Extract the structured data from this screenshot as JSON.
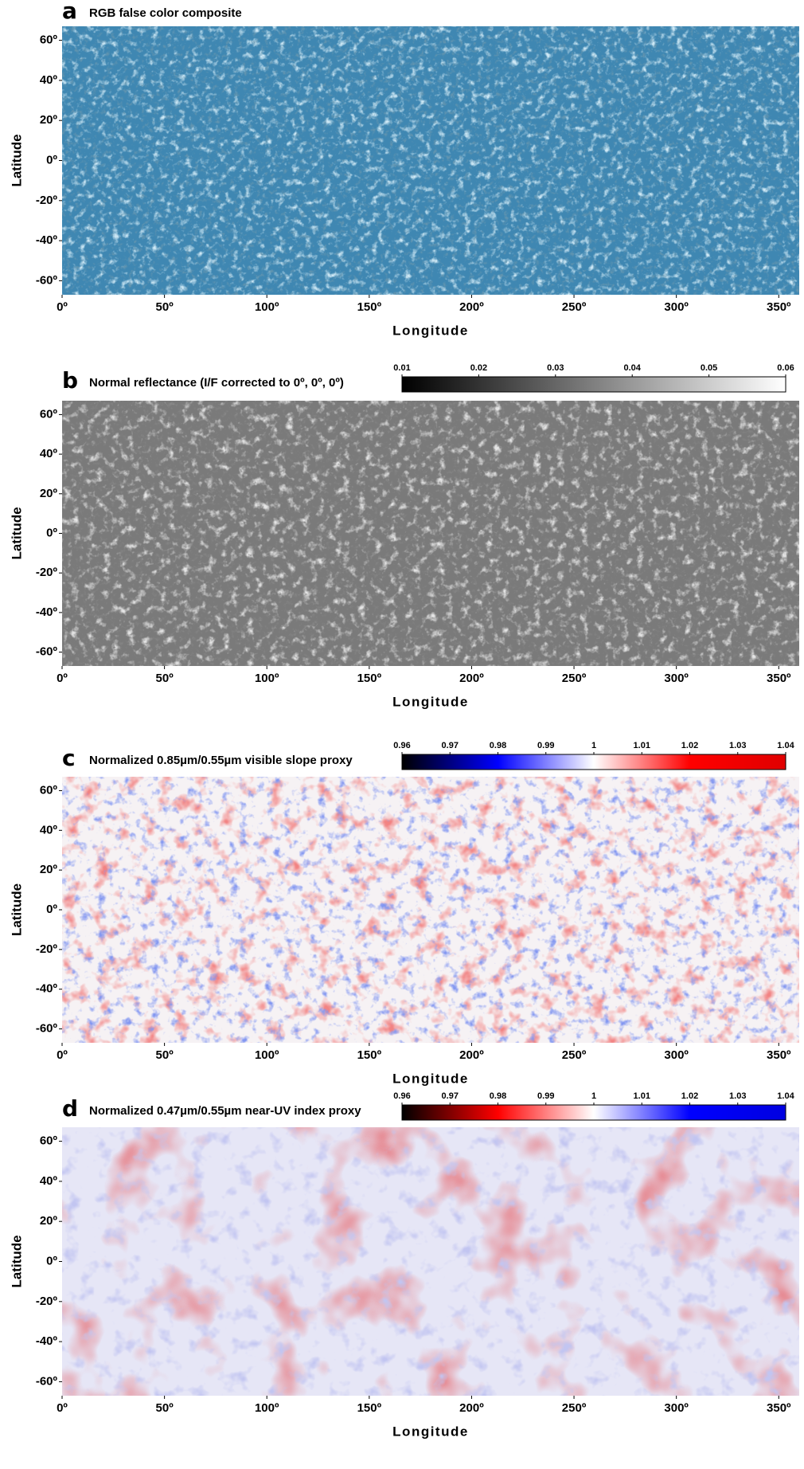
{
  "chart_data": [
    {
      "type": "map",
      "panel": "a",
      "title": "RGB false color composite",
      "xlabel": "Longitude",
      "ylabel": "Latitude",
      "xlim": [
        0,
        360
      ],
      "ylim": [
        -67,
        67
      ],
      "xticks": [
        {
          "value": 0,
          "label": "0º"
        },
        {
          "value": 50,
          "label": "50º"
        },
        {
          "value": 100,
          "label": "100º"
        },
        {
          "value": 150,
          "label": "150º"
        },
        {
          "value": 200,
          "label": "200º"
        },
        {
          "value": 250,
          "label": "250º"
        },
        {
          "value": 300,
          "label": "300º"
        },
        {
          "value": 350,
          "label": "350º"
        }
      ],
      "yticks": [
        {
          "value": 60,
          "label": "60º"
        },
        {
          "value": 40,
          "label": "40º"
        },
        {
          "value": 20,
          "label": "20º"
        },
        {
          "value": 0,
          "label": "0º"
        },
        {
          "value": -20,
          "label": "-20º"
        },
        {
          "value": -40,
          "label": "-40º"
        },
        {
          "value": -60,
          "label": "-60º"
        }
      ],
      "colors": [
        "#3f87b2",
        "#9fd0ea",
        "#1f4c6e"
      ]
    },
    {
      "type": "map",
      "panel": "b",
      "title": "Normal reflectance (I/F corrected to 0º, 0º, 0º)",
      "xlabel": "Longitude",
      "ylabel": "Latitude",
      "xlim": [
        0,
        360
      ],
      "ylim": [
        -67,
        67
      ],
      "xticks": [
        {
          "value": 0,
          "label": "0º"
        },
        {
          "value": 50,
          "label": "50º"
        },
        {
          "value": 100,
          "label": "100º"
        },
        {
          "value": 150,
          "label": "150º"
        },
        {
          "value": 200,
          "label": "200º"
        },
        {
          "value": 250,
          "label": "250º"
        },
        {
          "value": 300,
          "label": "300º"
        },
        {
          "value": 350,
          "label": "350º"
        }
      ],
      "yticks": [
        {
          "value": 60,
          "label": "60º"
        },
        {
          "value": 40,
          "label": "40º"
        },
        {
          "value": 20,
          "label": "20º"
        },
        {
          "value": 0,
          "label": "0º"
        },
        {
          "value": -20,
          "label": "-20º"
        },
        {
          "value": -40,
          "label": "-40º"
        },
        {
          "value": -60,
          "label": "-60º"
        }
      ],
      "colors": [
        "#7a7a7a",
        "#c8c8c8",
        "#3a3a3a"
      ],
      "colorbar_lim": [
        0.01,
        0.06
      ],
      "colorbar_ticks": [
        0.01,
        0.02,
        0.03,
        0.04,
        0.05,
        0.06
      ],
      "colormap": [
        "#000000",
        "#ffffff"
      ]
    },
    {
      "type": "map",
      "panel": "c",
      "title": "Normalized 0.85µm/0.55µm visible slope proxy",
      "xlabel": "Longitude",
      "ylabel": "Latitude",
      "xlim": [
        0,
        360
      ],
      "ylim": [
        -67,
        67
      ],
      "xticks": [
        {
          "value": 0,
          "label": "0º"
        },
        {
          "value": 50,
          "label": "50º"
        },
        {
          "value": 100,
          "label": "100º"
        },
        {
          "value": 150,
          "label": "150º"
        },
        {
          "value": 200,
          "label": "200º"
        },
        {
          "value": 250,
          "label": "250º"
        },
        {
          "value": 300,
          "label": "300º"
        },
        {
          "value": 350,
          "label": "350º"
        }
      ],
      "yticks": [
        {
          "value": 60,
          "label": "60º"
        },
        {
          "value": 40,
          "label": "40º"
        },
        {
          "value": 20,
          "label": "20º"
        },
        {
          "value": 0,
          "label": "0º"
        },
        {
          "value": -20,
          "label": "-20º"
        },
        {
          "value": -40,
          "label": "-40º"
        },
        {
          "value": -60,
          "label": "-60º"
        }
      ],
      "colors": [
        "#f6f2f4",
        "#e23a3a",
        "#3a4fe0"
      ],
      "colorbar_lim": [
        0.96,
        1.04
      ],
      "colorbar_ticks": [
        0.96,
        0.97,
        0.98,
        0.99,
        1,
        1.01,
        1.02,
        1.03,
        1.04
      ],
      "colormap": [
        "#000000",
        "#0000ff",
        "#ffffff",
        "#ff0000",
        "#e00000"
      ]
    },
    {
      "type": "map",
      "panel": "d",
      "title": "Normalized 0.47µm/0.55µm near-UV index proxy",
      "xlabel": "Longitude",
      "ylabel": "Latitude",
      "xlim": [
        0,
        360
      ],
      "ylim": [
        -67,
        67
      ],
      "xticks": [
        {
          "value": 0,
          "label": "0º"
        },
        {
          "value": 50,
          "label": "50º"
        },
        {
          "value": 100,
          "label": "100º"
        },
        {
          "value": 150,
          "label": "150º"
        },
        {
          "value": 200,
          "label": "200º"
        },
        {
          "value": 250,
          "label": "250º"
        },
        {
          "value": 300,
          "label": "300º"
        },
        {
          "value": 350,
          "label": "350º"
        }
      ],
      "yticks": [
        {
          "value": 60,
          "label": "60º"
        },
        {
          "value": 40,
          "label": "40º"
        },
        {
          "value": 20,
          "label": "20º"
        },
        {
          "value": 0,
          "label": "0º"
        },
        {
          "value": -20,
          "label": "-20º"
        },
        {
          "value": -40,
          "label": "-40º"
        },
        {
          "value": -60,
          "label": "-60º"
        }
      ],
      "colors": [
        "#e6e6f6",
        "#c9414a",
        "#8a8fe0"
      ],
      "colorbar_lim": [
        0.96,
        1.04
      ],
      "colorbar_ticks": [
        0.96,
        0.97,
        0.98,
        0.99,
        1,
        1.01,
        1.02,
        1.03,
        1.04
      ],
      "colormap": [
        "#000000",
        "#ff0000",
        "#ffffff",
        "#0000ff",
        "#0000e0"
      ]
    }
  ]
}
